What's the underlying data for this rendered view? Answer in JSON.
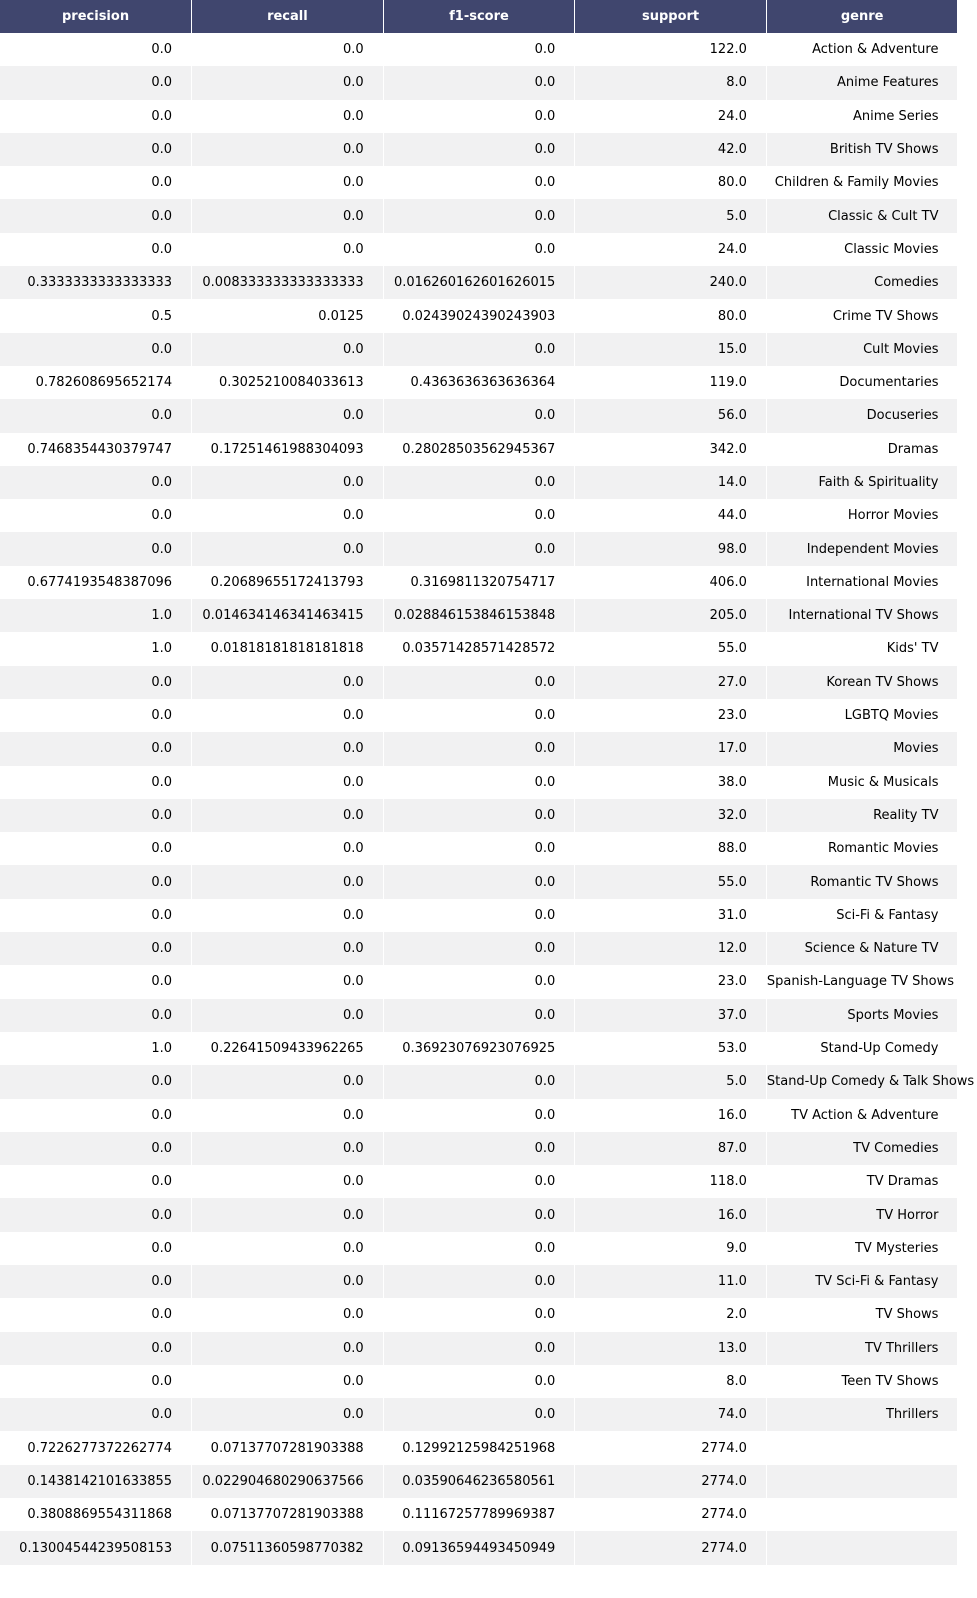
{
  "headers": [
    "precision",
    "recall",
    "f1-score",
    "support",
    "genre"
  ],
  "rows": [
    [
      "0.0",
      "0.0",
      "0.0",
      "122.0",
      "Action & Adventure"
    ],
    [
      "0.0",
      "0.0",
      "0.0",
      "8.0",
      "Anime Features"
    ],
    [
      "0.0",
      "0.0",
      "0.0",
      "24.0",
      "Anime Series"
    ],
    [
      "0.0",
      "0.0",
      "0.0",
      "42.0",
      "British TV Shows"
    ],
    [
      "0.0",
      "0.0",
      "0.0",
      "80.0",
      "Children & Family Movies"
    ],
    [
      "0.0",
      "0.0",
      "0.0",
      "5.0",
      "Classic & Cult TV"
    ],
    [
      "0.0",
      "0.0",
      "0.0",
      "24.0",
      "Classic Movies"
    ],
    [
      "0.3333333333333333",
      "0.008333333333333333",
      "0.016260162601626015",
      "240.0",
      "Comedies"
    ],
    [
      "0.5",
      "0.0125",
      "0.02439024390243903",
      "80.0",
      "Crime TV Shows"
    ],
    [
      "0.0",
      "0.0",
      "0.0",
      "15.0",
      "Cult Movies"
    ],
    [
      "0.782608695652174",
      "0.3025210084033613",
      "0.4363636363636364",
      "119.0",
      "Documentaries"
    ],
    [
      "0.0",
      "0.0",
      "0.0",
      "56.0",
      "Docuseries"
    ],
    [
      "0.7468354430379747",
      "0.17251461988304093",
      "0.28028503562945367",
      "342.0",
      "Dramas"
    ],
    [
      "0.0",
      "0.0",
      "0.0",
      "14.0",
      "Faith & Spirituality"
    ],
    [
      "0.0",
      "0.0",
      "0.0",
      "44.0",
      "Horror Movies"
    ],
    [
      "0.0",
      "0.0",
      "0.0",
      "98.0",
      "Independent Movies"
    ],
    [
      "0.6774193548387096",
      "0.20689655172413793",
      "0.3169811320754717",
      "406.0",
      "International Movies"
    ],
    [
      "1.0",
      "0.014634146341463415",
      "0.028846153846153848",
      "205.0",
      "International TV Shows"
    ],
    [
      "1.0",
      "0.01818181818181818",
      "0.03571428571428572",
      "55.0",
      "Kids' TV"
    ],
    [
      "0.0",
      "0.0",
      "0.0",
      "27.0",
      "Korean TV Shows"
    ],
    [
      "0.0",
      "0.0",
      "0.0",
      "23.0",
      "LGBTQ Movies"
    ],
    [
      "0.0",
      "0.0",
      "0.0",
      "17.0",
      "Movies"
    ],
    [
      "0.0",
      "0.0",
      "0.0",
      "38.0",
      "Music & Musicals"
    ],
    [
      "0.0",
      "0.0",
      "0.0",
      "32.0",
      "Reality TV"
    ],
    [
      "0.0",
      "0.0",
      "0.0",
      "88.0",
      "Romantic Movies"
    ],
    [
      "0.0",
      "0.0",
      "0.0",
      "55.0",
      "Romantic TV Shows"
    ],
    [
      "0.0",
      "0.0",
      "0.0",
      "31.0",
      "Sci-Fi & Fantasy"
    ],
    [
      "0.0",
      "0.0",
      "0.0",
      "12.0",
      "Science & Nature TV"
    ],
    [
      "0.0",
      "0.0",
      "0.0",
      "23.0",
      "Spanish-Language TV Shows"
    ],
    [
      "0.0",
      "0.0",
      "0.0",
      "37.0",
      "Sports Movies"
    ],
    [
      "1.0",
      "0.22641509433962265",
      "0.36923076923076925",
      "53.0",
      "Stand-Up Comedy"
    ],
    [
      "0.0",
      "0.0",
      "0.0",
      "5.0",
      "Stand-Up Comedy & Talk Shows"
    ],
    [
      "0.0",
      "0.0",
      "0.0",
      "16.0",
      "TV Action & Adventure"
    ],
    [
      "0.0",
      "0.0",
      "0.0",
      "87.0",
      "TV Comedies"
    ],
    [
      "0.0",
      "0.0",
      "0.0",
      "118.0",
      "TV Dramas"
    ],
    [
      "0.0",
      "0.0",
      "0.0",
      "16.0",
      "TV Horror"
    ],
    [
      "0.0",
      "0.0",
      "0.0",
      "9.0",
      "TV Mysteries"
    ],
    [
      "0.0",
      "0.0",
      "0.0",
      "11.0",
      "TV Sci-Fi & Fantasy"
    ],
    [
      "0.0",
      "0.0",
      "0.0",
      "2.0",
      "TV Shows"
    ],
    [
      "0.0",
      "0.0",
      "0.0",
      "13.0",
      "TV Thrillers"
    ],
    [
      "0.0",
      "0.0",
      "0.0",
      "8.0",
      "Teen TV Shows"
    ],
    [
      "0.0",
      "0.0",
      "0.0",
      "74.0",
      "Thrillers"
    ],
    [
      "0.7226277372262774",
      "0.07137707281903388",
      "0.12992125984251968",
      "2774.0",
      ""
    ],
    [
      "0.1438142101633855",
      "0.022904680290637566",
      "0.03590646236580561",
      "2774.0",
      ""
    ],
    [
      "0.3808869554311868",
      "0.07137707281903388",
      "0.11167257789969387",
      "2774.0",
      ""
    ],
    [
      "0.13004544239508153",
      "0.07511360598770382",
      "0.09136594493450949",
      "2774.0",
      ""
    ]
  ],
  "colors": {
    "header_bg": "#40466e",
    "header_text": "#ffffff",
    "stripe": "#f1f1f2"
  }
}
